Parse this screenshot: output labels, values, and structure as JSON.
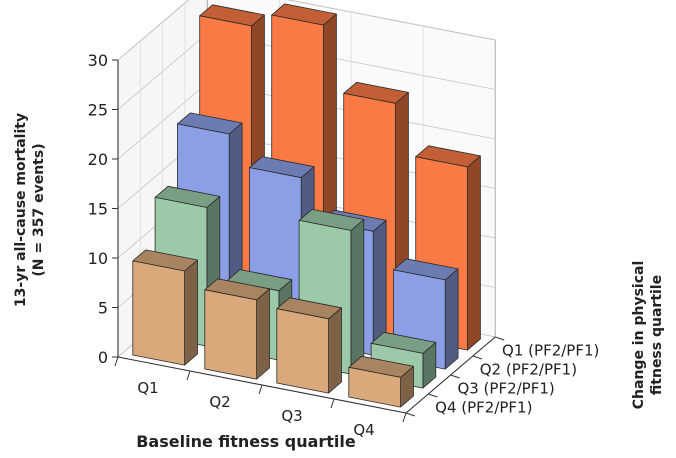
{
  "chart_data": {
    "type": "bar",
    "subtype": "3d-bar",
    "xlabel": "Baseline fitness quartile",
    "ylabel": "13-yr all-cause mortality",
    "ylabel2": "(N = 357 events)",
    "zlabel": "Change in physical",
    "zlabel2": "fitness quartile",
    "x_categories": [
      "Q1",
      "Q2",
      "Q3",
      "Q4"
    ],
    "z_categories": [
      "Q1 (PF2/PF1)",
      "Q2 (PF2/PF1)",
      "Q3 (PF2/PF1)",
      "Q4 (PF2/PF1)"
    ],
    "y_ticks": [
      "0",
      "5",
      "10",
      "15",
      "20",
      "25",
      "30"
    ],
    "ylim": [
      0,
      30
    ],
    "grid": true,
    "series": [
      {
        "name": "Q1 (PF2/PF1)",
        "color": "#f97a45",
        "values": [
          28.5,
          30.0,
          23.5,
          18.5
        ]
      },
      {
        "name": "Q2 (PF2/PF1)",
        "color": "#8c9ee6",
        "values": [
          19.5,
          16.5,
          12.5,
          9.0
        ]
      },
      {
        "name": "Q3 (PF2/PF1)",
        "color": "#9ccaa8",
        "values": [
          14.0,
          7.0,
          14.5,
          3.5
        ]
      },
      {
        "name": "Q4 (PF2/PF1)",
        "color": "#d9a97c",
        "values": [
          9.5,
          8.0,
          7.5,
          3.0
        ]
      }
    ]
  }
}
